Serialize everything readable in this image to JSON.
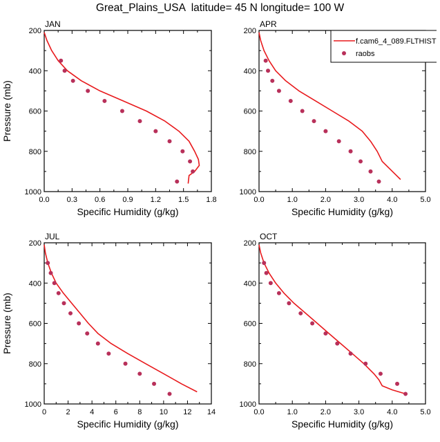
{
  "title": "Great_Plains_USA  latitude= 45 N longitude= 100 W",
  "colors": {
    "model": "#e8191c",
    "obs": "#b8305a",
    "axis": "#000000"
  },
  "chart_data": [
    {
      "type": "line",
      "panel_label": "JAN",
      "xlabel": "Specific Humidity (g/kg)",
      "ylabel": "Pressure (mb)",
      "xlim": [
        0,
        1.8
      ],
      "ylim": [
        200,
        1000
      ],
      "y_inverted": true,
      "xticks": [
        "0.0",
        "0.3",
        "0.6",
        "0.9",
        "1.2",
        "1.5",
        "1.8"
      ],
      "xtick_values": [
        0,
        0.3,
        0.6,
        0.9,
        1.2,
        1.5,
        1.8
      ],
      "yticks": [
        "200",
        "400",
        "600",
        "800",
        "1000"
      ],
      "ytick_values": [
        200,
        400,
        600,
        800,
        1000
      ],
      "series": [
        {
          "name": "f.cam6_4_089.FLTHIST",
          "kind": "line",
          "color_key": "model",
          "x": [
            0.0,
            0.03,
            0.08,
            0.15,
            0.25,
            0.4,
            0.6,
            0.85,
            1.1,
            1.3,
            1.45,
            1.56,
            1.62,
            1.66,
            1.67,
            1.62,
            1.56,
            1.55
          ],
          "y": [
            210,
            250,
            300,
            350,
            400,
            450,
            500,
            550,
            600,
            650,
            700,
            750,
            800,
            840,
            870,
            900,
            920,
            960
          ]
        },
        {
          "name": "raobs",
          "kind": "scatter",
          "color_key": "obs",
          "x": [
            0.18,
            0.22,
            0.31,
            0.47,
            0.65,
            0.84,
            1.03,
            1.2,
            1.35,
            1.49,
            1.57,
            1.6,
            1.43
          ],
          "y": [
            350,
            400,
            450,
            500,
            550,
            600,
            650,
            700,
            750,
            800,
            850,
            900,
            950
          ]
        }
      ]
    },
    {
      "type": "line",
      "panel_label": "APR",
      "xlabel": "Specific Humidity (g/kg)",
      "ylabel": "",
      "xlim": [
        0,
        5
      ],
      "ylim": [
        200,
        1000
      ],
      "y_inverted": true,
      "xticks": [
        "0.0",
        "1.0",
        "2.0",
        "3.0",
        "4.0",
        "5.0"
      ],
      "xtick_values": [
        0,
        1,
        2,
        3,
        4,
        5
      ],
      "yticks": [
        "200",
        "400",
        "600",
        "800",
        "1000"
      ],
      "ytick_values": [
        200,
        400,
        600,
        800,
        1000
      ],
      "legend_position": "top-right",
      "series": [
        {
          "name": "f.cam6_4_089.FLTHIST",
          "kind": "line",
          "color_key": "model",
          "x": [
            0.0,
            0.05,
            0.15,
            0.3,
            0.5,
            0.8,
            1.2,
            1.7,
            2.2,
            2.7,
            3.1,
            3.35,
            3.55,
            3.7,
            4.25
          ],
          "y": [
            210,
            250,
            300,
            350,
            400,
            450,
            500,
            550,
            600,
            650,
            700,
            750,
            800,
            850,
            940
          ]
        },
        {
          "name": "raobs",
          "kind": "scatter",
          "color_key": "obs",
          "x": [
            0.2,
            0.27,
            0.4,
            0.6,
            0.95,
            1.3,
            1.65,
            2.0,
            2.4,
            2.75,
            3.05,
            3.35,
            3.6
          ],
          "y": [
            350,
            400,
            450,
            500,
            550,
            600,
            650,
            700,
            750,
            800,
            850,
            900,
            950
          ]
        }
      ]
    },
    {
      "type": "line",
      "panel_label": "JUL",
      "xlabel": "Specific Humidity (g/kg)",
      "ylabel": "Pressure (mb)",
      "xlim": [
        0,
        14
      ],
      "ylim": [
        200,
        1000
      ],
      "y_inverted": true,
      "xticks": [
        "0",
        "2",
        "4",
        "6",
        "8",
        "10",
        "12",
        "14"
      ],
      "xtick_values": [
        0,
        2,
        4,
        6,
        8,
        10,
        12,
        14
      ],
      "yticks": [
        "200",
        "400",
        "600",
        "800",
        "1000"
      ],
      "ytick_values": [
        200,
        400,
        600,
        800,
        1000
      ],
      "series": [
        {
          "name": "f.cam6_4_089.FLTHIST",
          "kind": "line",
          "color_key": "model",
          "x": [
            0.0,
            0.1,
            0.3,
            0.6,
            1.0,
            1.6,
            2.3,
            3.0,
            3.7,
            4.5,
            5.6,
            7.0,
            8.5,
            10.0,
            11.5,
            12.8
          ],
          "y": [
            210,
            250,
            300,
            350,
            400,
            450,
            500,
            550,
            600,
            650,
            700,
            750,
            800,
            850,
            900,
            940
          ]
        },
        {
          "name": "raobs",
          "kind": "scatter",
          "color_key": "obs",
          "x": [
            0.3,
            0.55,
            0.85,
            1.2,
            1.65,
            2.2,
            2.9,
            3.6,
            4.5,
            5.4,
            6.8,
            8.0,
            9.2,
            10.5
          ],
          "y": [
            300,
            350,
            400,
            450,
            500,
            550,
            600,
            650,
            700,
            750,
            800,
            850,
            900,
            950
          ]
        }
      ]
    },
    {
      "type": "line",
      "panel_label": "OCT",
      "xlabel": "Specific Humidity (g/kg)",
      "ylabel": "",
      "xlim": [
        0,
        5
      ],
      "ylim": [
        200,
        1000
      ],
      "y_inverted": true,
      "xticks": [
        "0.0",
        "1.0",
        "2.0",
        "3.0",
        "4.0",
        "5.0"
      ],
      "xtick_values": [
        0,
        1,
        2,
        3,
        4,
        5
      ],
      "yticks": [
        "200",
        "400",
        "600",
        "800",
        "1000"
      ],
      "ytick_values": [
        200,
        400,
        600,
        800,
        1000
      ],
      "series": [
        {
          "name": "f.cam6_4_089.FLTHIST",
          "kind": "line",
          "color_key": "model",
          "x": [
            0.0,
            0.05,
            0.15,
            0.3,
            0.5,
            0.75,
            1.05,
            1.4,
            1.75,
            2.1,
            2.45,
            2.8,
            3.15,
            3.45,
            3.6,
            3.7,
            4.0,
            4.4
          ],
          "y": [
            210,
            250,
            300,
            350,
            400,
            450,
            500,
            550,
            600,
            650,
            700,
            750,
            800,
            850,
            880,
            910,
            930,
            950
          ]
        },
        {
          "name": "raobs",
          "kind": "scatter",
          "color_key": "obs",
          "x": [
            0.15,
            0.22,
            0.35,
            0.6,
            0.9,
            1.25,
            1.6,
            2.0,
            2.35,
            2.75,
            3.2,
            3.65,
            4.15,
            4.4
          ],
          "y": [
            300,
            350,
            400,
            450,
            500,
            550,
            600,
            650,
            700,
            750,
            800,
            850,
            900,
            950
          ]
        }
      ]
    }
  ],
  "legend": {
    "entries": [
      {
        "label": "f.cam6_4_089.FLTHIST",
        "kind": "line",
        "color_key": "model"
      },
      {
        "label": "raobs",
        "kind": "marker",
        "color_key": "obs"
      }
    ]
  }
}
